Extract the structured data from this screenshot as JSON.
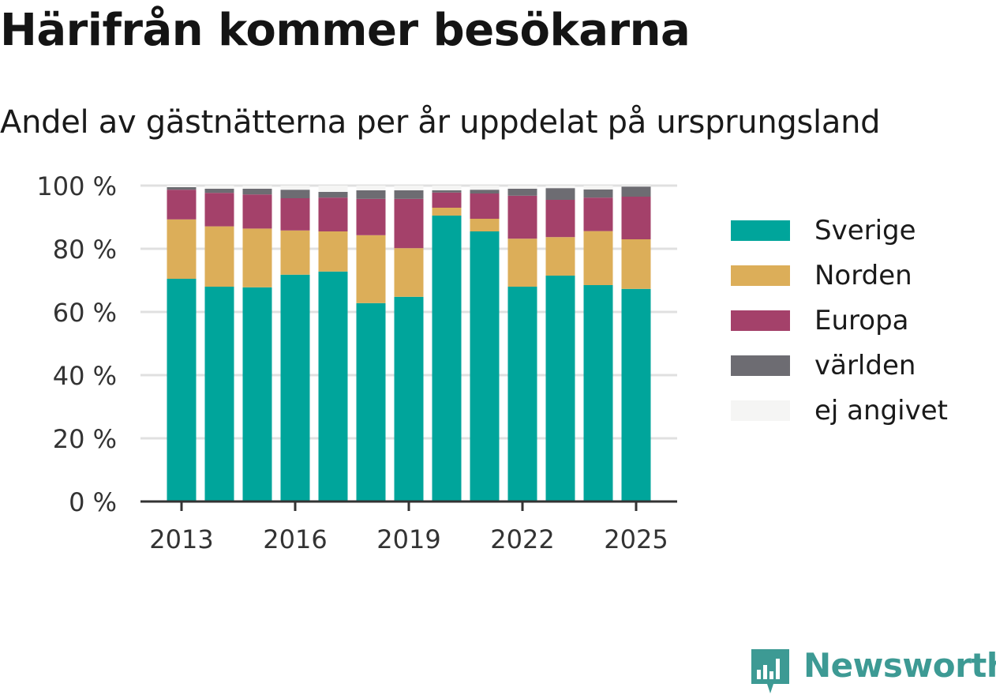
{
  "title": "Härifrån kommer besökarna",
  "subtitle": "Andel av gästnätterna per år uppdelat på ursprungsland",
  "brand": {
    "name": "Newsworthy",
    "icon": "newsworthy-logo-icon"
  },
  "chart_data": {
    "type": "bar",
    "stacked": true,
    "title": "Härifrån kommer besökarna",
    "subtitle": "Andel av gästnätterna per år uppdelat på ursprungsland",
    "xlabel": "",
    "ylabel": "",
    "categories": [
      "2013",
      "2014",
      "2015",
      "2016",
      "2017",
      "2018",
      "2019",
      "2020",
      "2021",
      "2022",
      "2023",
      "2024",
      "2025"
    ],
    "x_tick_labels": [
      "2013",
      "2016",
      "2019",
      "2022",
      "2025"
    ],
    "y_tick_labels": [
      "0 %",
      "20 %",
      "40 %",
      "60 %",
      "80 %",
      "100 %"
    ],
    "ylim": [
      0,
      100
    ],
    "grid": true,
    "legend_position": "right",
    "series": [
      {
        "name": "Sverige",
        "color": "#00a59b",
        "values": [
          70.5,
          68,
          67.8,
          71.8,
          72.8,
          62.8,
          64.8,
          90.5,
          85.5,
          68,
          71.5,
          68.5,
          67.3
        ]
      },
      {
        "name": "Norden",
        "color": "#dcae59",
        "values": [
          18.8,
          19.1,
          18.6,
          14,
          12.7,
          21.5,
          15.4,
          2.5,
          4,
          15.2,
          12.2,
          17.1,
          15.7
        ]
      },
      {
        "name": "Europa",
        "color": "#a4416a",
        "values": [
          9.4,
          10.6,
          10.8,
          10.2,
          10.7,
          11.5,
          15.6,
          4.8,
          8,
          13.6,
          11.8,
          10.6,
          13.5
        ]
      },
      {
        "name": "världen",
        "color": "#6d6c72",
        "values": [
          0.8,
          1.3,
          1.8,
          2.7,
          1.8,
          2.7,
          2.7,
          0.7,
          1.2,
          2.2,
          3.7,
          2.6,
          3.2
        ]
      },
      {
        "name": "ej angivet",
        "color": "#f5f5f4",
        "values": [
          0.5,
          1,
          1,
          1.3,
          2,
          1.5,
          1.5,
          1.5,
          1.3,
          1,
          0.8,
          1.2,
          0.3
        ]
      }
    ]
  }
}
